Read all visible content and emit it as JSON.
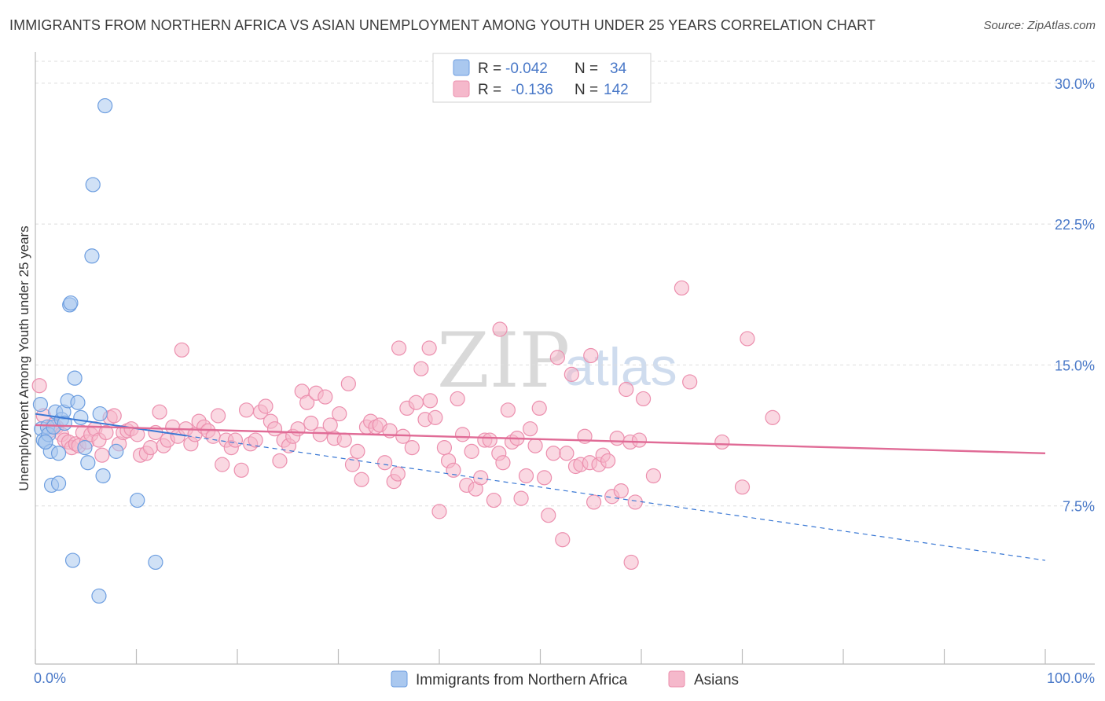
{
  "title": "IMMIGRANTS FROM NORTHERN AFRICA VS ASIAN UNEMPLOYMENT AMONG YOUTH UNDER 25 YEARS CORRELATION CHART",
  "source": "Source: ZipAtlas.com",
  "watermark": {
    "zip": "ZIP",
    "atlas": "atlas"
  },
  "colors": {
    "blue_fill": "#aac8ef",
    "blue_stroke": "#6d9ee0",
    "blue_line": "#3a78d4",
    "pink_fill": "#f5b8cb",
    "pink_stroke": "#ec8fae",
    "pink_line": "#e06b96",
    "tick_text": "#4a79c8",
    "grid": "#dddddd"
  },
  "legend": {
    "rows": [
      {
        "r_label": "R =",
        "r_value": "-0.042",
        "n_label": "N =",
        "n_value": "34"
      },
      {
        "r_label": "R =",
        "r_value": "-0.136",
        "n_label": "N =",
        "n_value": "142"
      }
    ]
  },
  "chart_data": {
    "type": "scatter",
    "xlabel": "",
    "ylabel": "Unemployment Among Youth under 25 years",
    "xlim": [
      0,
      100
    ],
    "ylim": [
      0,
      31.5
    ],
    "x_tick_labels": [
      "0.0%",
      "100.0%"
    ],
    "y_ticks": [
      7.5,
      15.0,
      22.5,
      30.0
    ],
    "y_tick_labels": [
      "7.5%",
      "15.0%",
      "22.5%",
      "30.0%"
    ],
    "grid": "horizontal dashed",
    "legend_position": "top-center",
    "series": [
      {
        "name": "Immigrants from Northern Africa",
        "color": "blue",
        "trend": {
          "x0": 0,
          "y0": 12.4,
          "x1": 100,
          "y1": 4.6,
          "solid_until": 15
        },
        "points": [
          [
            0.5,
            12.9
          ],
          [
            0.6,
            11.6
          ],
          [
            0.8,
            11.0
          ],
          [
            1.0,
            10.9
          ],
          [
            1.2,
            11.7
          ],
          [
            1.3,
            11.3
          ],
          [
            1.5,
            10.4
          ],
          [
            1.8,
            11.7
          ],
          [
            2.0,
            12.5
          ],
          [
            1.6,
            8.6
          ],
          [
            2.3,
            10.3
          ],
          [
            2.3,
            8.7
          ],
          [
            2.6,
            12.1
          ],
          [
            2.8,
            12.5
          ],
          [
            2.9,
            11.9
          ],
          [
            3.2,
            13.1
          ],
          [
            3.4,
            18.2
          ],
          [
            3.5,
            18.3
          ],
          [
            3.7,
            4.6
          ],
          [
            3.9,
            14.3
          ],
          [
            4.2,
            13.0
          ],
          [
            4.5,
            12.2
          ],
          [
            4.9,
            10.6
          ],
          [
            5.2,
            9.8
          ],
          [
            5.6,
            20.8
          ],
          [
            5.7,
            24.6
          ],
          [
            6.3,
            2.7
          ],
          [
            6.4,
            12.4
          ],
          [
            6.7,
            9.1
          ],
          [
            6.9,
            28.8
          ],
          [
            8.0,
            10.4
          ],
          [
            10.1,
            7.8
          ],
          [
            11.9,
            4.5
          ],
          [
            1.0,
            10.9
          ]
        ]
      },
      {
        "name": "Asians",
        "color": "pink",
        "trend": {
          "x0": 0,
          "y0": 11.8,
          "x1": 100,
          "y1": 10.3
        },
        "points": [
          [
            0.4,
            13.9
          ],
          [
            0.8,
            12.3
          ],
          [
            1.4,
            11.5
          ],
          [
            1.8,
            11.8
          ],
          [
            2.1,
            11.7
          ],
          [
            2.6,
            11.3
          ],
          [
            2.9,
            11.0
          ],
          [
            3.3,
            10.9
          ],
          [
            3.6,
            10.6
          ],
          [
            4.0,
            10.8
          ],
          [
            4.3,
            10.7
          ],
          [
            4.7,
            11.4
          ],
          [
            5.1,
            10.9
          ],
          [
            5.5,
            11.3
          ],
          [
            5.9,
            11.6
          ],
          [
            6.3,
            11.0
          ],
          [
            6.6,
            10.2
          ],
          [
            7.0,
            11.4
          ],
          [
            7.4,
            12.2
          ],
          [
            7.8,
            12.3
          ],
          [
            8.3,
            10.8
          ],
          [
            8.7,
            11.4
          ],
          [
            9.1,
            11.5
          ],
          [
            9.5,
            11.6
          ],
          [
            10.1,
            11.3
          ],
          [
            10.4,
            10.2
          ],
          [
            11.0,
            10.3
          ],
          [
            11.4,
            10.6
          ],
          [
            11.9,
            11.4
          ],
          [
            12.3,
            12.5
          ],
          [
            12.7,
            10.7
          ],
          [
            13.1,
            11.0
          ],
          [
            13.6,
            11.7
          ],
          [
            14.1,
            11.2
          ],
          [
            14.5,
            15.8
          ],
          [
            14.9,
            11.6
          ],
          [
            15.4,
            10.8
          ],
          [
            15.8,
            11.3
          ],
          [
            16.2,
            12.0
          ],
          [
            16.7,
            11.7
          ],
          [
            17.1,
            11.5
          ],
          [
            17.6,
            11.2
          ],
          [
            18.1,
            12.3
          ],
          [
            18.5,
            9.7
          ],
          [
            18.9,
            11.0
          ],
          [
            19.4,
            10.6
          ],
          [
            19.8,
            11.0
          ],
          [
            20.4,
            9.4
          ],
          [
            20.9,
            12.6
          ],
          [
            21.3,
            10.8
          ],
          [
            21.8,
            11.0
          ],
          [
            22.3,
            12.5
          ],
          [
            22.8,
            12.8
          ],
          [
            23.3,
            12.0
          ],
          [
            23.7,
            11.6
          ],
          [
            24.2,
            9.9
          ],
          [
            24.6,
            11.0
          ],
          [
            25.1,
            10.7
          ],
          [
            25.5,
            11.2
          ],
          [
            26.0,
            11.6
          ],
          [
            26.4,
            13.6
          ],
          [
            26.9,
            13.0
          ],
          [
            27.3,
            11.9
          ],
          [
            27.8,
            13.5
          ],
          [
            28.2,
            11.3
          ],
          [
            28.7,
            13.3
          ],
          [
            29.2,
            11.8
          ],
          [
            29.6,
            11.1
          ],
          [
            30.1,
            12.4
          ],
          [
            30.6,
            11.0
          ],
          [
            31.0,
            14.0
          ],
          [
            31.4,
            9.7
          ],
          [
            31.9,
            10.4
          ],
          [
            32.3,
            8.9
          ],
          [
            32.8,
            11.7
          ],
          [
            33.2,
            12.0
          ],
          [
            33.7,
            11.7
          ],
          [
            34.1,
            11.8
          ],
          [
            34.6,
            9.8
          ],
          [
            35.1,
            11.5
          ],
          [
            35.5,
            8.8
          ],
          [
            35.9,
            9.2
          ],
          [
            36.4,
            11.2
          ],
          [
            36.8,
            12.7
          ],
          [
            37.3,
            10.6
          ],
          [
            37.7,
            13.0
          ],
          [
            38.2,
            14.8
          ],
          [
            38.6,
            12.1
          ],
          [
            39.1,
            13.1
          ],
          [
            39.6,
            12.2
          ],
          [
            40.0,
            7.2
          ],
          [
            40.5,
            10.6
          ],
          [
            40.9,
            9.9
          ],
          [
            41.4,
            9.4
          ],
          [
            41.8,
            13.2
          ],
          [
            42.3,
            11.3
          ],
          [
            42.7,
            8.6
          ],
          [
            43.2,
            10.4
          ],
          [
            43.6,
            8.4
          ],
          [
            44.1,
            9.0
          ],
          [
            44.5,
            11.0
          ],
          [
            45.0,
            11.0
          ],
          [
            45.4,
            7.8
          ],
          [
            45.9,
            10.3
          ],
          [
            46.3,
            9.8
          ],
          [
            46.8,
            12.6
          ],
          [
            47.2,
            10.9
          ],
          [
            47.7,
            11.1
          ],
          [
            48.1,
            7.9
          ],
          [
            48.6,
            9.1
          ],
          [
            49.0,
            11.6
          ],
          [
            49.5,
            10.7
          ],
          [
            49.9,
            12.7
          ],
          [
            50.4,
            9.0
          ],
          [
            50.8,
            7.0
          ],
          [
            51.3,
            10.3
          ],
          [
            51.7,
            15.4
          ],
          [
            52.2,
            5.7
          ],
          [
            52.6,
            10.3
          ],
          [
            53.1,
            14.5
          ],
          [
            53.5,
            9.6
          ],
          [
            54.0,
            9.7
          ],
          [
            54.4,
            11.2
          ],
          [
            54.9,
            9.8
          ],
          [
            55.3,
            7.7
          ],
          [
            55.8,
            9.7
          ],
          [
            56.2,
            10.2
          ],
          [
            56.7,
            9.9
          ],
          [
            57.1,
            8.0
          ],
          [
            57.6,
            11.1
          ],
          [
            58.0,
            8.3
          ],
          [
            58.5,
            13.7
          ],
          [
            58.9,
            10.9
          ],
          [
            59.4,
            7.7
          ],
          [
            59.8,
            11.0
          ],
          [
            61.2,
            9.1
          ],
          [
            70.0,
            8.5
          ],
          [
            70.5,
            16.4
          ],
          [
            46.0,
            16.9
          ],
          [
            55.0,
            15.5
          ],
          [
            64.0,
            19.1
          ],
          [
            36.0,
            15.9
          ],
          [
            39.0,
            15.9
          ],
          [
            59.0,
            4.5
          ],
          [
            60.2,
            13.2
          ],
          [
            64.8,
            14.1
          ],
          [
            73.0,
            12.2
          ],
          [
            68.0,
            10.9
          ]
        ]
      }
    ]
  },
  "bottom_legend": [
    "Immigrants from Northern Africa",
    "Asians"
  ]
}
